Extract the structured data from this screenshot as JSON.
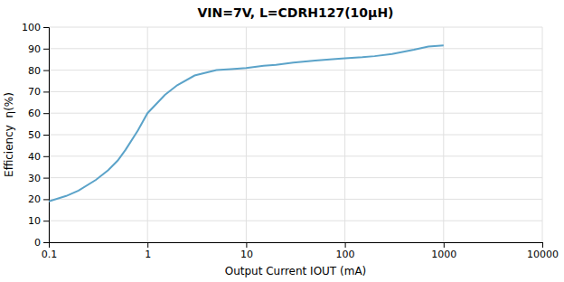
{
  "chart_data": {
    "type": "line",
    "title": "VIN=7V, L=CDRH127(10μH)",
    "xlabel": "Output Current IOUT (mA)",
    "ylabel": "Efficiency  η(%)",
    "log": "x",
    "grid": true,
    "color": "#5ba3c9",
    "xlim": [
      0.1,
      10000
    ],
    "ylim": [
      0,
      100
    ],
    "xticks": [
      0.1,
      1,
      10,
      100,
      1000,
      10000
    ],
    "yticks": [
      0,
      10,
      20,
      30,
      40,
      50,
      60,
      70,
      80,
      90,
      100
    ],
    "x": [
      0.1,
      0.15,
      0.2,
      0.3,
      0.4,
      0.5,
      0.6,
      0.8,
      1.0,
      1.5,
      2.0,
      3.0,
      5.0,
      7.0,
      10.0,
      15.0,
      20.0,
      30.0,
      50.0,
      70.0,
      100.0,
      150.0,
      200.0,
      300.0,
      500.0,
      700.0,
      1000.0
    ],
    "values": [
      19.0,
      21.5,
      24.0,
      29.0,
      33.5,
      38.0,
      43.0,
      52.0,
      60.0,
      68.5,
      73.0,
      77.5,
      80.0,
      80.5,
      81.0,
      82.0,
      82.5,
      83.5,
      84.5,
      85.0,
      85.5,
      86.0,
      86.5,
      87.5,
      89.5,
      91.0,
      91.5
    ]
  }
}
